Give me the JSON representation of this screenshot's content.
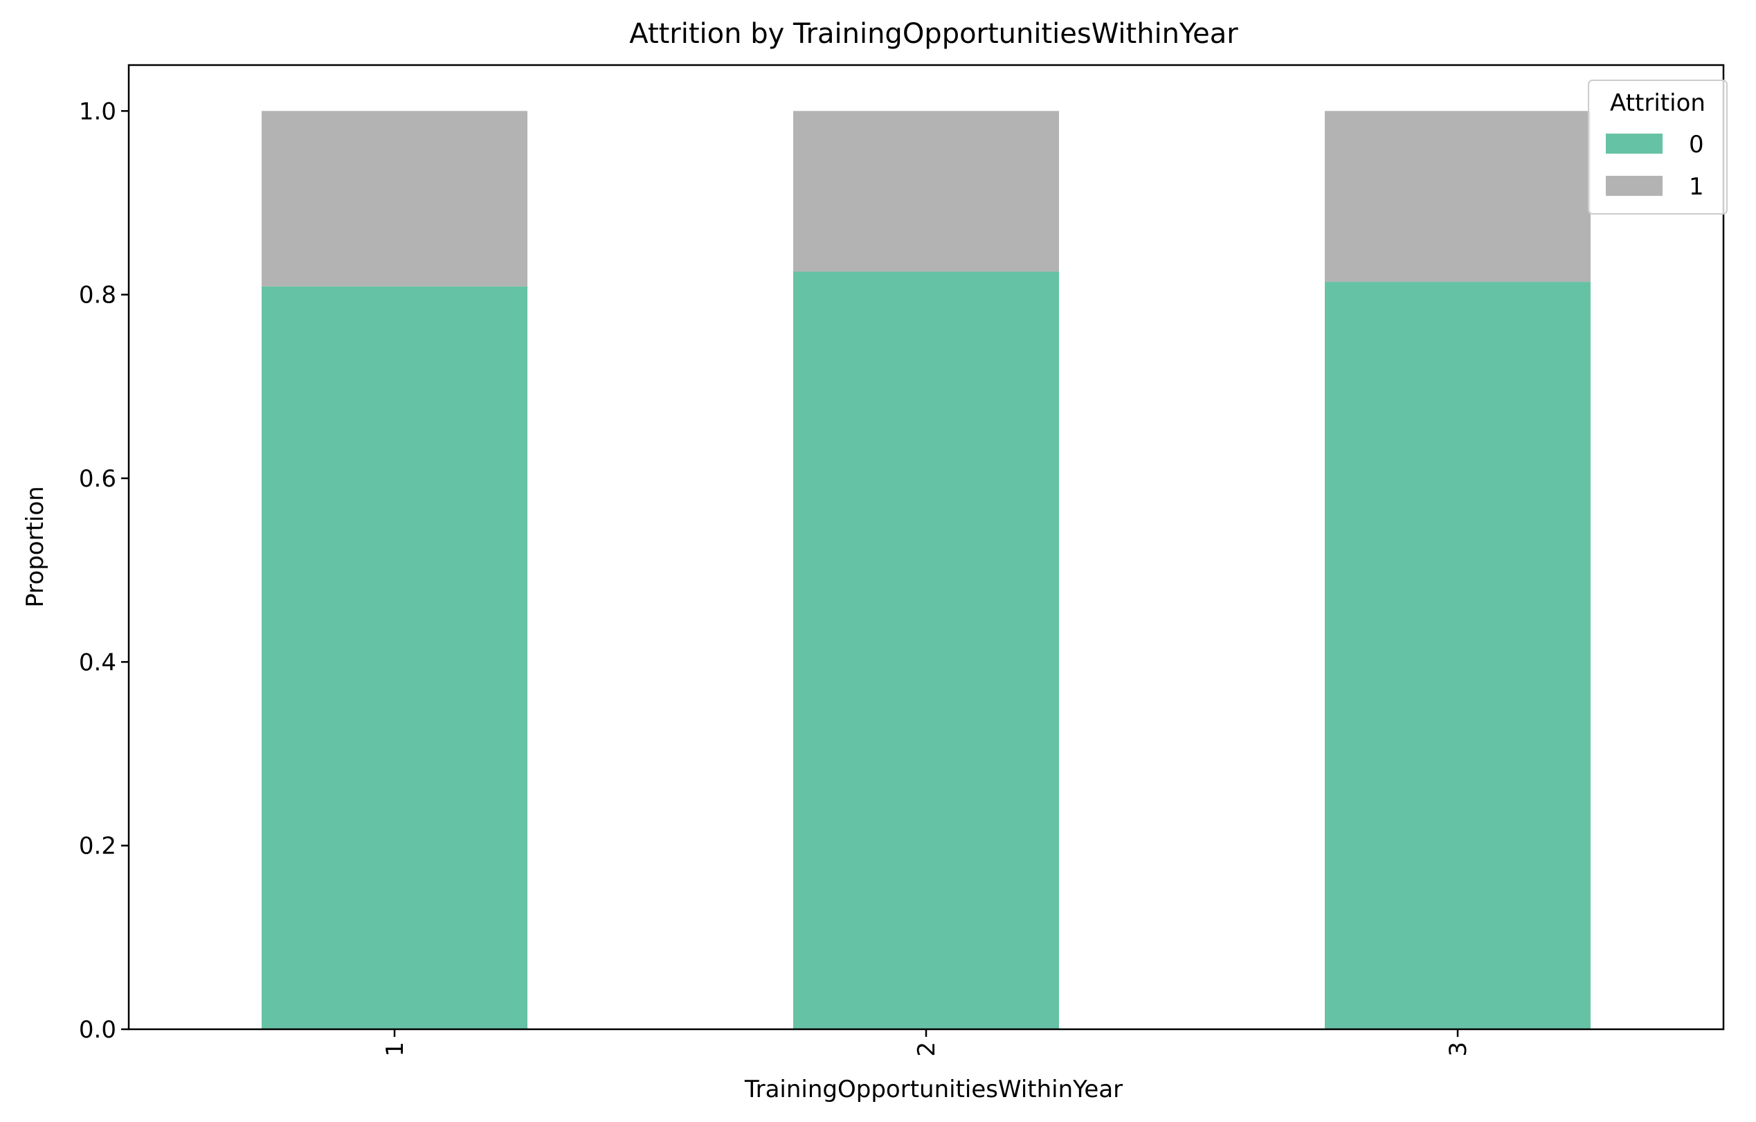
{
  "chart_data": {
    "type": "bar",
    "stacked": true,
    "title": "Attrition by TrainingOpportunitiesWithinYear",
    "xlabel": "TrainingOpportunitiesWithinYear",
    "ylabel": "Proportion",
    "categories": [
      "1",
      "2",
      "3"
    ],
    "series": [
      {
        "name": "0",
        "values": [
          0.809,
          0.825,
          0.814
        ],
        "color": "#66c2a5"
      },
      {
        "name": "1",
        "values": [
          0.191,
          0.175,
          0.186
        ],
        "color": "#b3b3b3"
      }
    ],
    "ylim": [
      0,
      1.05
    ],
    "yticks": [
      0.0,
      0.2,
      0.4,
      0.6,
      0.8,
      1.0
    ],
    "ytick_labels": [
      "0.0",
      "0.2",
      "0.4",
      "0.6",
      "0.8",
      "1.0"
    ],
    "grid": false,
    "legend": {
      "title": "Attrition",
      "position": "top-right"
    }
  }
}
